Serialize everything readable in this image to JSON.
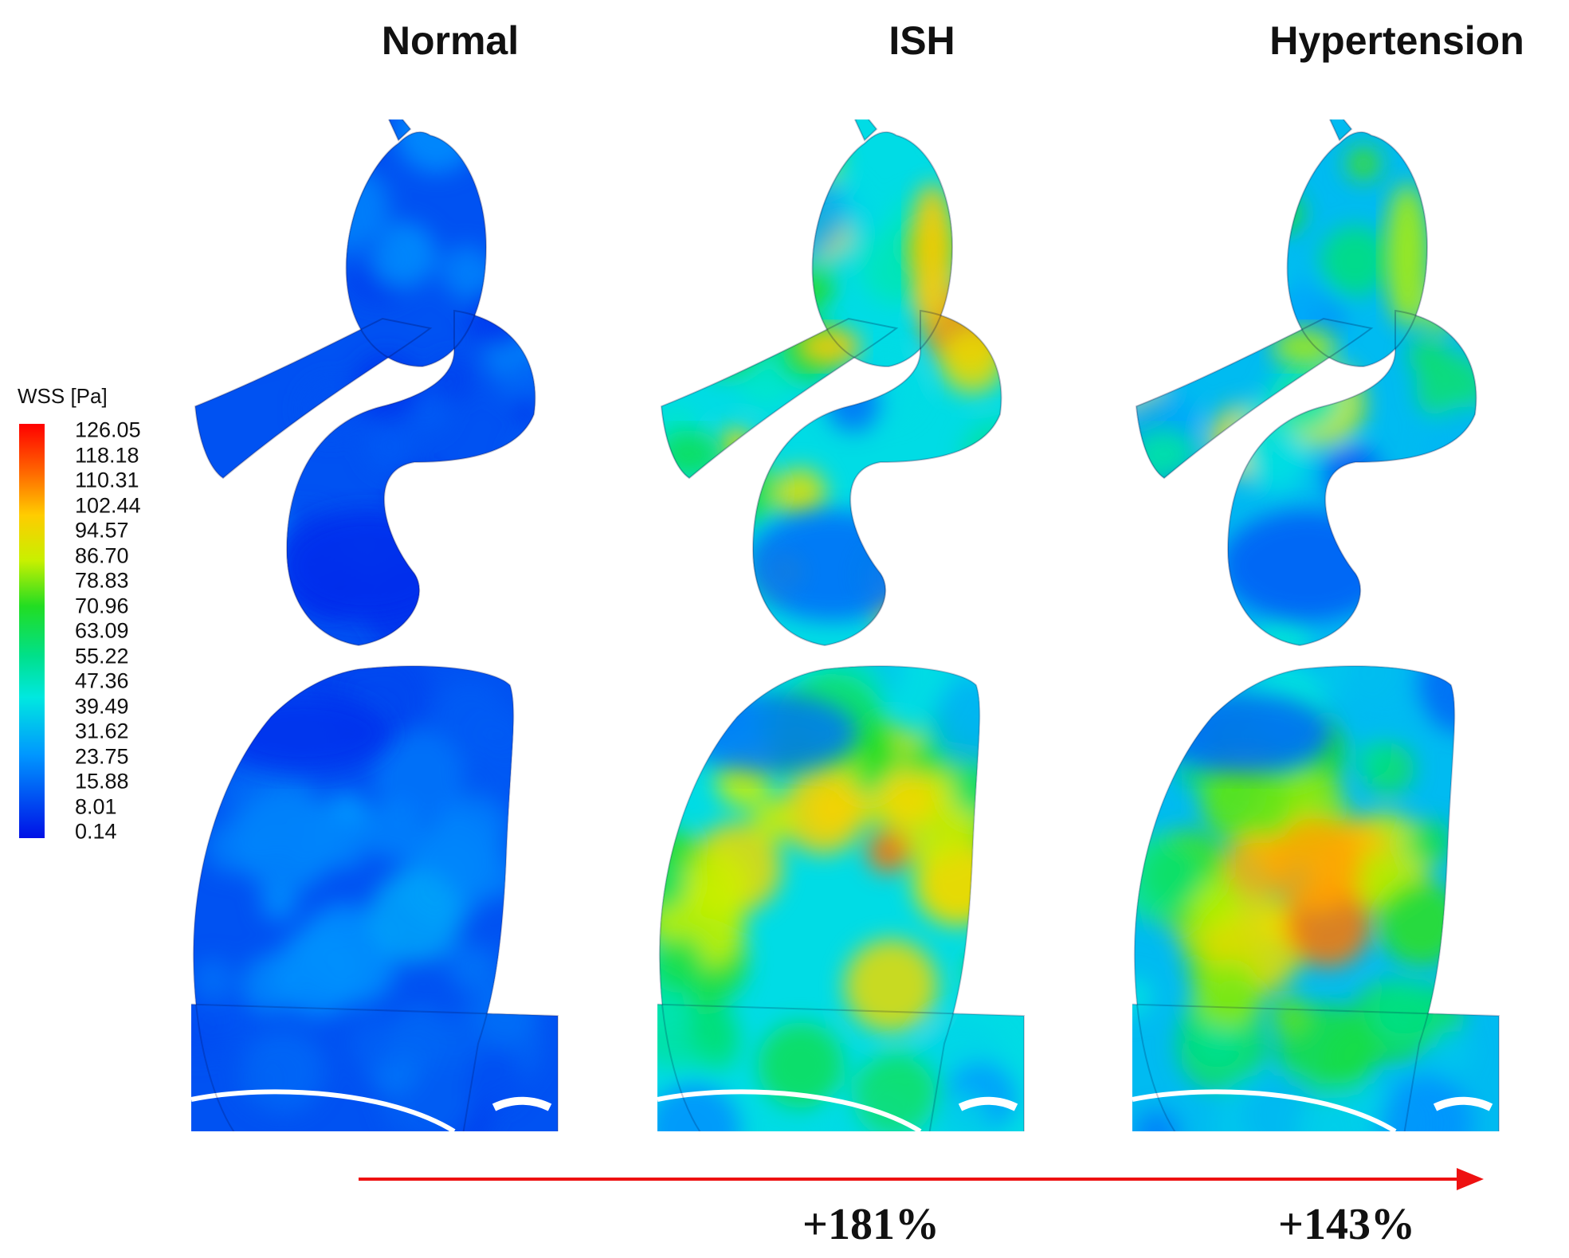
{
  "columns": [
    {
      "title": "Normal",
      "percent": ""
    },
    {
      "title": "ISH",
      "percent": "+181%"
    },
    {
      "title": "Hypertension",
      "percent": "+143%"
    }
  ],
  "legend": {
    "title": "WSS [Pa]",
    "ticks": [
      "126.05",
      "118.18",
      "110.31",
      "102.44",
      "94.57",
      "86.70",
      "78.83",
      "70.96",
      "63.09",
      "55.22",
      "47.36",
      "39.49",
      "31.62",
      "23.75",
      "15.88",
      "8.01",
      "0.14"
    ],
    "colors": [
      "#ff0000",
      "#ff5a00",
      "#ffae00",
      "#f5e600",
      "#b8f000",
      "#44e600",
      "#00dc28",
      "#00de8c",
      "#00e6d2",
      "#0096ff",
      "#0020ee"
    ]
  },
  "arrow_color": "#ee1111",
  "panels": [
    {
      "level": 0.18
    },
    {
      "level": 0.58
    },
    {
      "level": 0.48
    }
  ]
}
